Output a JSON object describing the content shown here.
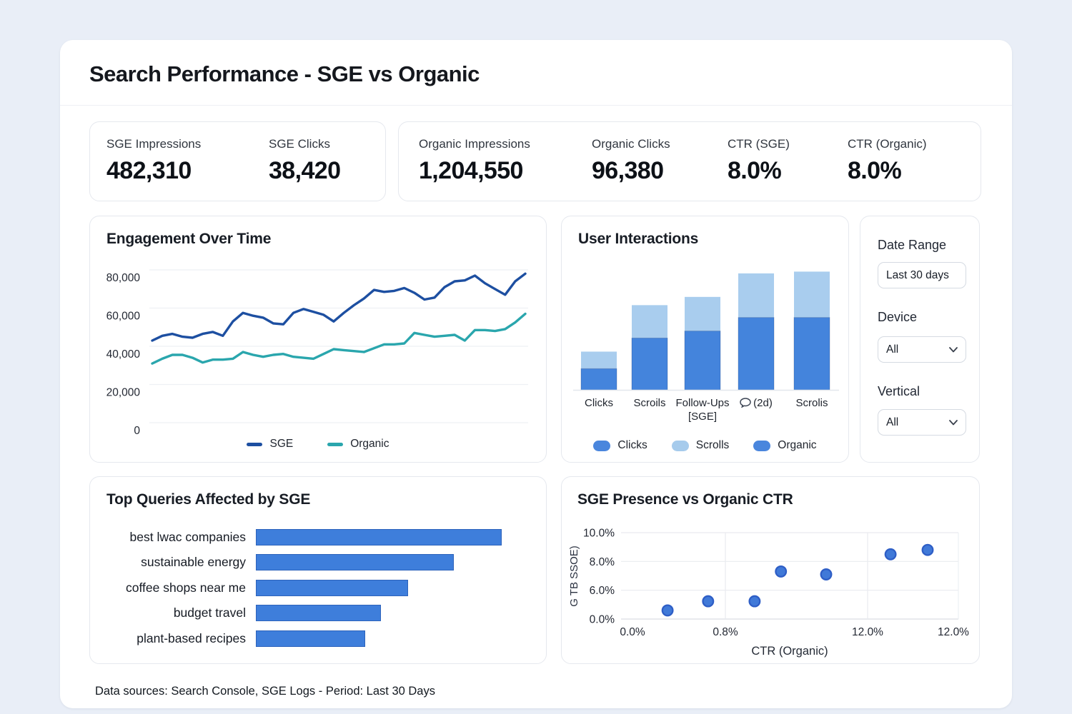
{
  "page": {
    "title": "Search Performance - SGE vs Organic",
    "footer": "Data sources: Search Console, SGE Logs - Period: Last 30 Days"
  },
  "kpis": [
    {
      "label": "SGE Impressions",
      "value": "482,310"
    },
    {
      "label": "SGE Clicks",
      "value": "38,420"
    },
    {
      "label": "Organic Impressions",
      "value": "1,204,550"
    },
    {
      "label": "Organic Clicks",
      "value": "96,380"
    },
    {
      "label": "CTR (SGE)",
      "value": "8.0%"
    },
    {
      "label": "CTR (Organic)",
      "value": "8.0%"
    }
  ],
  "filters": {
    "date_range_label": "Date Range",
    "date_range_value": "Last 30 days",
    "device_label": "Device",
    "device_value": "All",
    "vertical_label": "Vertical",
    "vertical_value": "All"
  },
  "chart_data": [
    {
      "id": "engagement",
      "type": "line",
      "title": "Engagement Over Time",
      "y_ticks": [
        "80,000",
        "60,000",
        "40,000",
        "20,000",
        "0"
      ],
      "ylim": [
        0,
        80000
      ],
      "grid": true,
      "legend_position": "bottom",
      "series": [
        {
          "name": "SGE",
          "color": "#1d4fa1",
          "values": [
            43000,
            45500,
            46500,
            45000,
            44500,
            46500,
            47500,
            45500,
            53000,
            57500,
            56000,
            55000,
            52000,
            51500,
            57500,
            59500,
            58000,
            56500,
            53000,
            57500,
            61500,
            65000,
            69500,
            68500,
            69000,
            70500,
            68000,
            64500,
            65500,
            71000,
            74000,
            74500,
            77000,
            73000,
            70000,
            67000,
            74000,
            78000
          ]
        },
        {
          "name": "Organic",
          "color": "#2aa6ad",
          "values": [
            31000,
            33500,
            35500,
            35500,
            34000,
            31500,
            33000,
            33000,
            33500,
            37000,
            35500,
            34500,
            35500,
            36000,
            34500,
            34000,
            33500,
            36000,
            38500,
            38000,
            37500,
            37000,
            39000,
            41000,
            41000,
            41500,
            47000,
            46000,
            45000,
            45500,
            46000,
            43000,
            48500,
            48500,
            48000,
            49000,
            52500,
            57000
          ]
        }
      ]
    },
    {
      "id": "interactions",
      "type": "stacked-bar",
      "title": "User Interactions",
      "categories": [
        {
          "lines": [
            "Clicks"
          ]
        },
        {
          "lines": [
            "Scroils"
          ]
        },
        {
          "lines": [
            "Follow-Ups",
            "[SGE]"
          ]
        },
        {
          "lines": [
            "(2d)"
          ],
          "icon": "speech-bubble-icon"
        },
        {
          "lines": [
            "Scrolis"
          ]
        }
      ],
      "ylim": [
        0,
        105
      ],
      "series": [
        {
          "name": "primary",
          "color": "#4484dc",
          "values": [
            18,
            44,
            50,
            61.5,
            61.5
          ]
        },
        {
          "name": "secondary",
          "color": "#a9cdee",
          "values": [
            14.5,
            28,
            29,
            37.5,
            39
          ]
        }
      ],
      "legend": [
        {
          "label": "Clicks",
          "color": "#4a86dd"
        },
        {
          "label": "Scrolls",
          "color": "#a6cbec"
        },
        {
          "label": "Organic",
          "color": "#4a86dd"
        }
      ]
    },
    {
      "id": "top_queries",
      "type": "bar",
      "orientation": "horizontal",
      "title": "Top Queries Affected by SGE",
      "categories": [
        "best lwac companies",
        "sustainable energy",
        "coffee shops near me",
        "budget travel",
        "plant-based recipes"
      ],
      "values": [
        100,
        80.5,
        62,
        51,
        44.5
      ],
      "xlim": [
        0,
        100
      ],
      "color": "#3e7edb"
    },
    {
      "id": "scatter",
      "type": "scatter",
      "title": "SGE Presence vs Organic CTR",
      "xlabel": "CTR (Organic)",
      "ylabel": "G TB SSOE)",
      "x_ticks": [
        "0.0%",
        "0.8%",
        "12.0%",
        "12.0%"
      ],
      "y_ticks": [
        "10.0%",
        "8.0%",
        "6.0%",
        "0.0%"
      ],
      "point_color": "#4079d8",
      "points": [
        {
          "x_frac": 0.138,
          "y_pct": 1.8
        },
        {
          "x_frac": 0.258,
          "y_pct": 3.7
        },
        {
          "x_frac": 0.396,
          "y_pct": 3.7
        },
        {
          "x_frac": 0.474,
          "y_pct": 7.3
        },
        {
          "x_frac": 0.608,
          "y_pct": 7.1
        },
        {
          "x_frac": 0.799,
          "y_pct": 8.5
        },
        {
          "x_frac": 0.909,
          "y_pct": 8.8
        }
      ]
    }
  ]
}
